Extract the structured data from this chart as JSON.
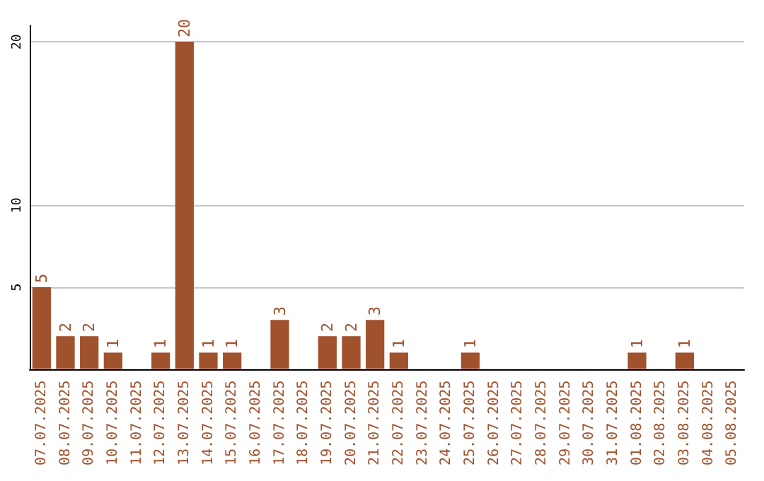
{
  "chart_data": {
    "type": "bar",
    "categories": [
      "07.07.2025",
      "08.07.2025",
      "09.07.2025",
      "10.07.2025",
      "11.07.2025",
      "12.07.2025",
      "13.07.2025",
      "14.07.2025",
      "15.07.2025",
      "16.07.2025",
      "17.07.2025",
      "18.07.2025",
      "19.07.2025",
      "20.07.2025",
      "21.07.2025",
      "22.07.2025",
      "23.07.2025",
      "24.07.2025",
      "25.07.2025",
      "26.07.2025",
      "27.07.2025",
      "28.07.2025",
      "29.07.2025",
      "30.07.2025",
      "31.07.2025",
      "01.08.2025",
      "02.08.2025",
      "03.08.2025",
      "04.08.2025",
      "05.08.2025"
    ],
    "values": [
      5,
      2,
      2,
      1,
      0,
      1,
      20,
      1,
      1,
      0,
      3,
      0,
      2,
      2,
      3,
      1,
      0,
      0,
      1,
      0,
      0,
      0,
      0,
      0,
      0,
      1,
      0,
      1,
      0,
      0
    ],
    "value_labels": [
      "5",
      "2",
      "2",
      "1",
      null,
      "1",
      "20",
      "1",
      "1",
      null,
      "3",
      null,
      "2",
      "2",
      "3",
      "1",
      null,
      null,
      "1",
      null,
      null,
      null,
      null,
      null,
      null,
      "1",
      null,
      "1",
      null,
      null
    ],
    "color": "#a0522d",
    "ylim": [
      0,
      21
    ],
    "yticks": [
      5,
      10,
      20
    ],
    "grid": "y"
  }
}
